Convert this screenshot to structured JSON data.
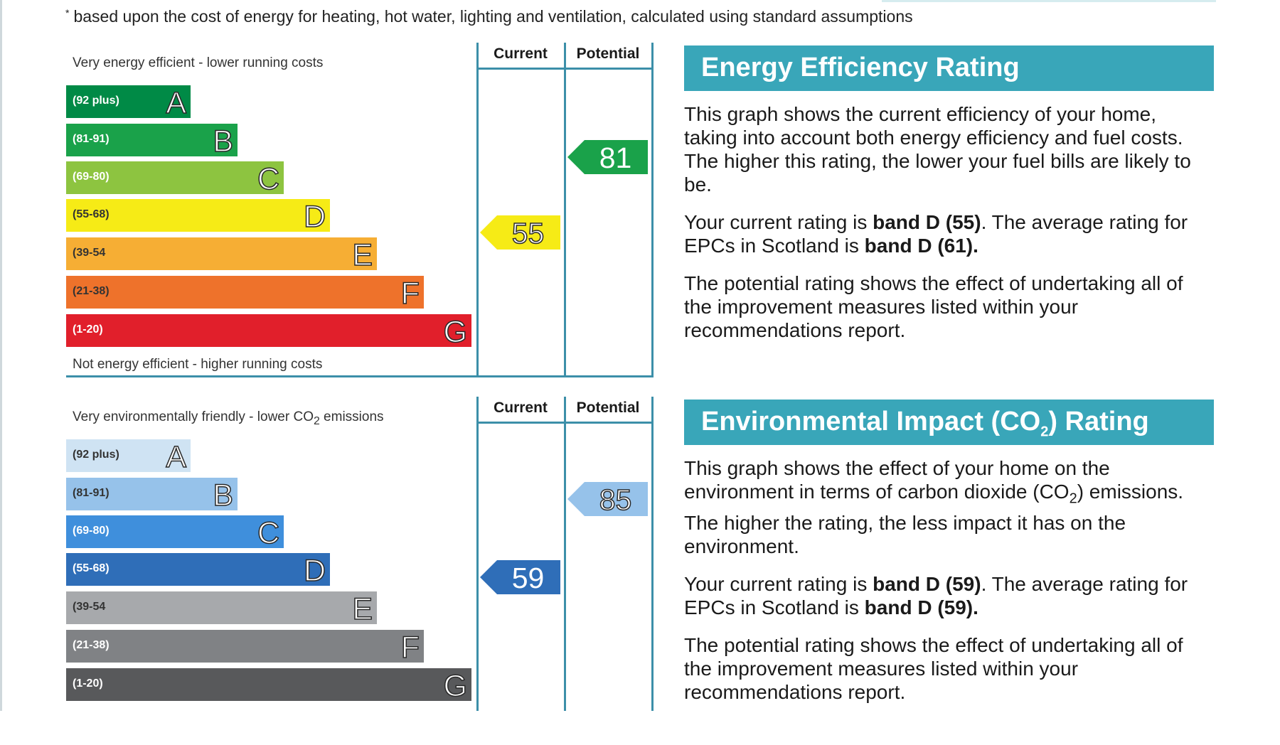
{
  "footnote": "based upon the cost of energy for heating, hot water, lighting and ventilation, calculated using standard assumptions",
  "column_headers": {
    "current": "Current",
    "potential": "Potential"
  },
  "energy_chart": {
    "top_caption": "Very energy efficient - lower running costs",
    "bottom_caption": "Not energy efficient - higher running costs",
    "bands": [
      {
        "range": "(92 plus)",
        "letter": "A",
        "color": "#008a46"
      },
      {
        "range": "(81-91)",
        "letter": "B",
        "color": "#1aa24a"
      },
      {
        "range": "(69-80)",
        "letter": "C",
        "color": "#8dc440"
      },
      {
        "range": "(55-68)",
        "letter": "D",
        "color": "#f6eb16"
      },
      {
        "range": "(39-54",
        "letter": "E",
        "color": "#f6ae34"
      },
      {
        "range": "(21-38)",
        "letter": "F",
        "color": "#ee722b"
      },
      {
        "range": "(1-20)",
        "letter": "G",
        "color": "#e11f2b"
      }
    ],
    "current": {
      "value": "55",
      "band": "D",
      "color": "#f6eb16"
    },
    "potential": {
      "value": "81",
      "band": "B",
      "color": "#1aa24a"
    }
  },
  "environment_chart": {
    "top_caption_pre": "Very environmentally friendly - lower ",
    "top_caption_co": "CO",
    "top_caption_sub": "2",
    "top_caption_post": " emissions",
    "bands": [
      {
        "range": "(92 plus)",
        "letter": "A",
        "color": "#cfe3f3"
      },
      {
        "range": "(81-91)",
        "letter": "B",
        "color": "#96c2ea"
      },
      {
        "range": "(69-80)",
        "letter": "C",
        "color": "#3f8fdc"
      },
      {
        "range": "(55-68)",
        "letter": "D",
        "color": "#2f6eb8"
      },
      {
        "range": "(39-54",
        "letter": "E",
        "color": "#a7a9ac"
      },
      {
        "range": "(21-38)",
        "letter": "F",
        "color": "#808285"
      },
      {
        "range": "(1-20)",
        "letter": "G",
        "color": "#58595b"
      }
    ],
    "current": {
      "value": "59",
      "band": "D",
      "color": "#2f6eb8"
    },
    "potential": {
      "value": "85",
      "band": "B",
      "color": "#96c2ea"
    }
  },
  "energy_panel": {
    "heading": "Energy Efficiency Rating",
    "p1": "This graph shows the current efficiency of your home, taking into account both energy efficiency and fuel costs. The higher this rating, the lower your fuel bills are likely to be.",
    "p2_pre": "Your current rating is ",
    "p2_bold1": "band D (55)",
    "p2_mid": ". The average rating for EPCs in Scotland is ",
    "p2_bold2": "band D (61).",
    "p3": "The potential rating shows the effect of undertaking all of the improvement measures listed within your recommendations report."
  },
  "env_panel": {
    "heading_pre": "Environmental Impact (CO",
    "heading_sub": "2",
    "heading_post": ") Rating",
    "p1_pre": "This graph shows the effect of your home on the environment in terms of carbon dioxide (CO",
    "p1_sub": "2",
    "p1_post": ") emissions. The higher the rating, the less impact it has on the environment.",
    "p2_pre": "Your current rating is ",
    "p2_bold1": "band D (59)",
    "p2_mid": ". The average rating for EPCs in Scotland is ",
    "p2_bold2": "band D (59).",
    "p3": "The potential rating shows the effect of undertaking all of the improvement measures listed within your recommendations report."
  }
}
